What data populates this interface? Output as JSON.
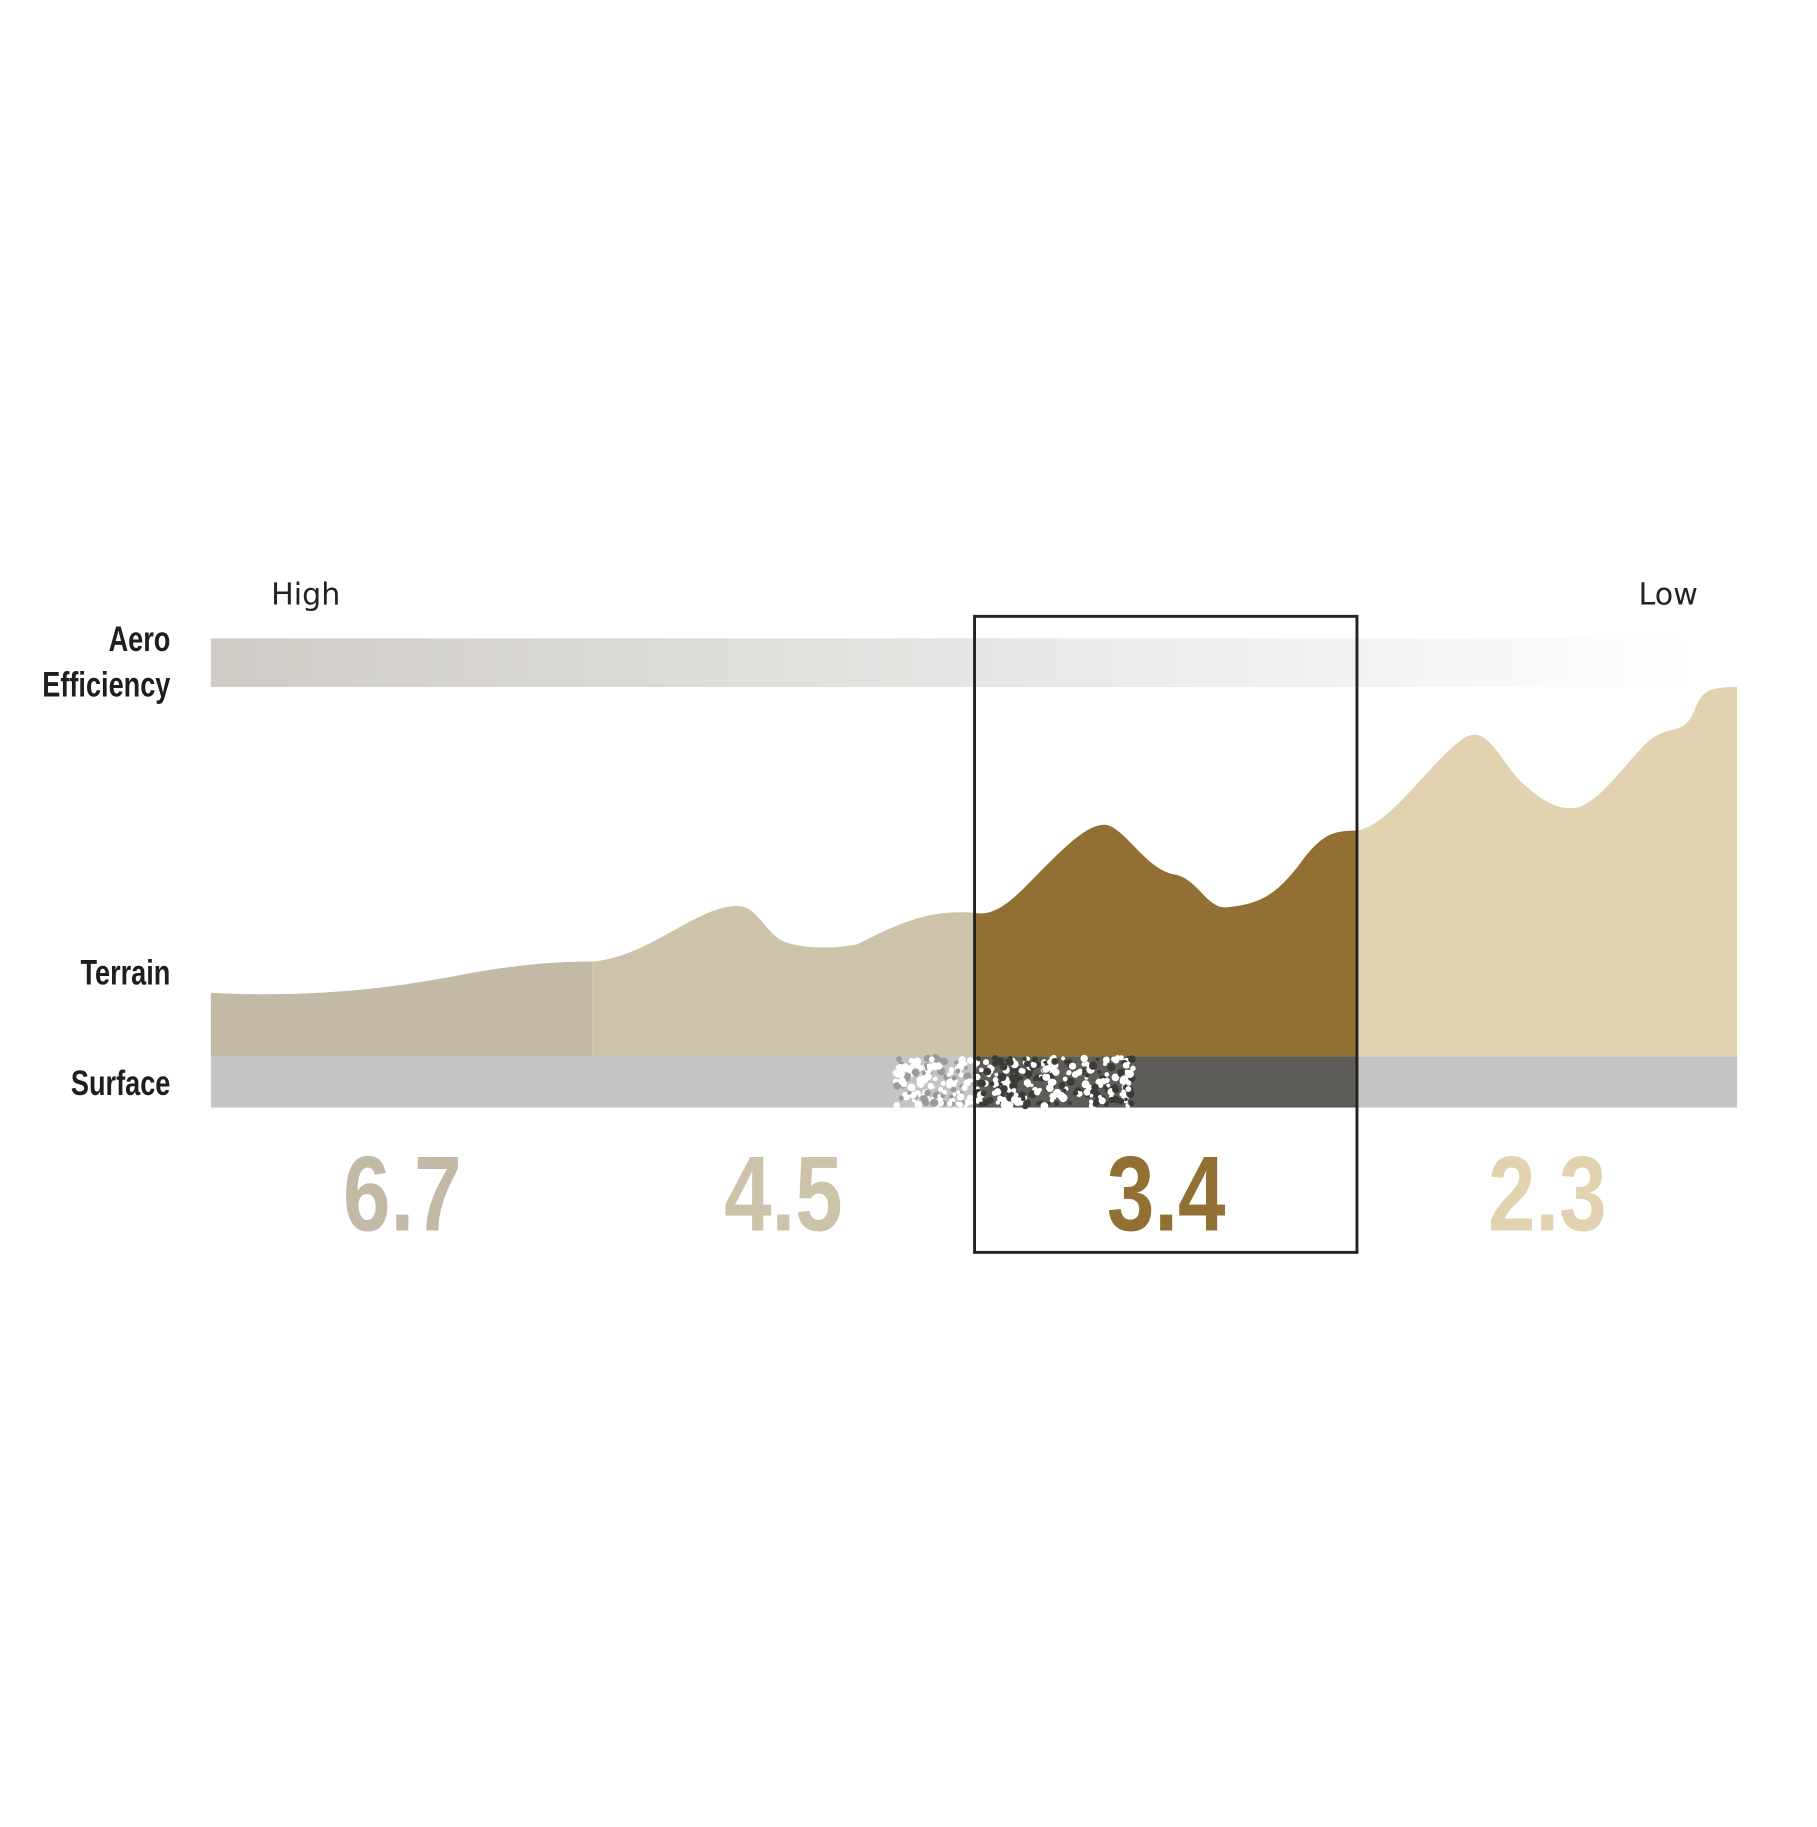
{
  "chart_data": {
    "type": "bar",
    "row_labels": {
      "aero": "Aero Efficiency",
      "aero_line1": "Aero",
      "aero_line2": "Efficiency",
      "terrain": "Terrain",
      "surface": "Surface"
    },
    "scale_labels": {
      "high": "High",
      "low": "Low"
    },
    "categories": [
      "6.7",
      "4.5",
      "3.4",
      "2.3"
    ],
    "values": [
      6.7,
      4.5,
      3.4,
      2.3
    ],
    "highlighted_index": 2,
    "colors": [
      "#c2b9a7",
      "#cdc2aa",
      "#926f32",
      "#e2d3b0"
    ],
    "surface_color": "#c4c4c4",
    "surface_highlight_color": "#5d5c58",
    "grid": false
  }
}
